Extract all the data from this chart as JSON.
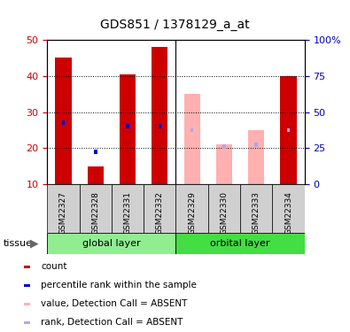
{
  "title": "GDS851 / 1378129_a_at",
  "samples": [
    "GSM22327",
    "GSM22328",
    "GSM22331",
    "GSM22332",
    "GSM22329",
    "GSM22330",
    "GSM22333",
    "GSM22334"
  ],
  "count_values": [
    45,
    15,
    40.5,
    48,
    null,
    null,
    null,
    40
  ],
  "count_absent_values": [
    null,
    null,
    null,
    null,
    35,
    21,
    25,
    null
  ],
  "rank_values": [
    27,
    19,
    26,
    26,
    null,
    null,
    null,
    25
  ],
  "rank_absent_values": [
    null,
    null,
    null,
    null,
    25,
    20.5,
    21,
    25
  ],
  "ylim_left": [
    10,
    50
  ],
  "ylim_right": [
    0,
    100
  ],
  "yticks_left": [
    10,
    20,
    30,
    40,
    50
  ],
  "yticks_right": [
    0,
    25,
    50,
    75,
    100
  ],
  "ytick_right_labels": [
    "0",
    "25",
    "50",
    "75",
    "100%"
  ],
  "left_tick_color": "#cc0000",
  "right_tick_color": "#0000bb",
  "bar_color_present": "#cc0000",
  "bar_color_absent": "#ffb0b0",
  "rank_color_present": "#0000cc",
  "rank_color_absent": "#aaaaee",
  "global_color": "#90ee90",
  "orbital_color": "#44dd44",
  "sample_bg_color": "#d0d0d0",
  "group_border_color": "#000000",
  "legend_items": [
    {
      "color": "#cc0000",
      "label": "count"
    },
    {
      "color": "#0000cc",
      "label": "percentile rank within the sample"
    },
    {
      "color": "#ffb0b0",
      "label": "value, Detection Call = ABSENT"
    },
    {
      "color": "#aaaaee",
      "label": "rank, Detection Call = ABSENT"
    }
  ],
  "tissue_label": "tissue",
  "tissue_arrow": "▶"
}
